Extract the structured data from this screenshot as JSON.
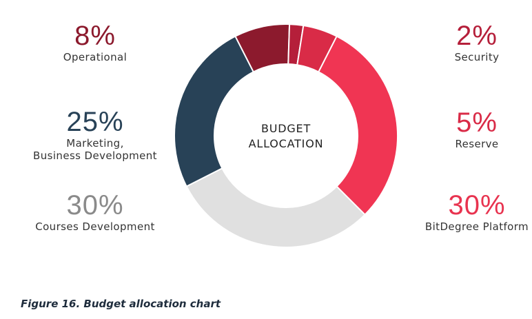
{
  "chart_data": {
    "type": "pie",
    "donut": true,
    "center_label": "BUDGET\nALLOCATION",
    "caption": "Figure 16. Budget allocation chart",
    "slices": [
      {
        "label": "BitDegree Platform",
        "value": 30,
        "value_label": "30%",
        "color": "#f03553"
      },
      {
        "label": "Courses Development",
        "value": 30,
        "value_label": "30%",
        "color": "#e0e0e0"
      },
      {
        "label": "Marketing,\nBusiness Development",
        "value": 25,
        "value_label": "25%",
        "color": "#284257"
      },
      {
        "label": "Operational",
        "value": 8,
        "value_label": "8%",
        "color": "#8c1a2d"
      },
      {
        "label": "Security",
        "value": 2,
        "value_label": "2%",
        "color": "#b51f3a"
      },
      {
        "label": "Reserve",
        "value": 5,
        "value_label": "5%",
        "color": "#d92b47"
      }
    ],
    "callout_colors": {
      "BitDegree Platform": "#e8334f",
      "Courses Development": "#8a8a8a",
      "Marketing,\nBusiness Development": "#284257",
      "Operational": "#8c1a2d",
      "Security": "#b51f3a",
      "Reserve": "#d92b47"
    }
  }
}
